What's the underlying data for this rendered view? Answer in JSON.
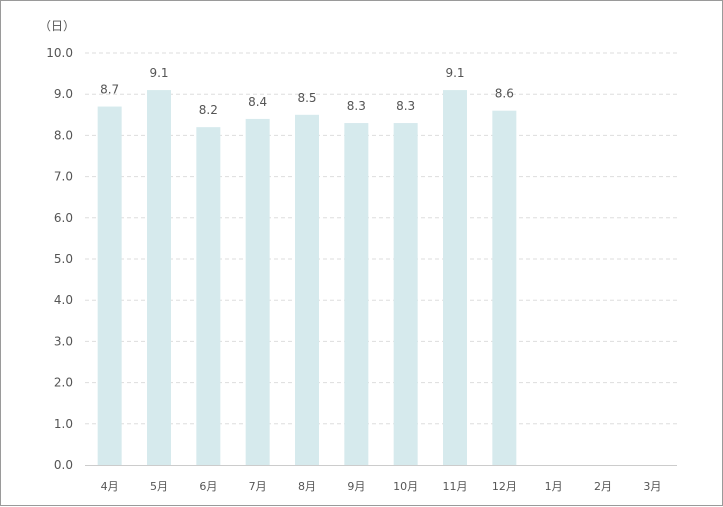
{
  "chart_data": {
    "type": "bar",
    "ylabel": "（日）",
    "ylim": [
      0,
      10
    ],
    "ytick_step": 1,
    "y_tick_labels": [
      "0.0",
      "1.0",
      "2.0",
      "3.0",
      "4.0",
      "5.0",
      "6.0",
      "7.0",
      "8.0",
      "9.0",
      "10.0"
    ],
    "categories": [
      "4月",
      "5月",
      "6月",
      "7月",
      "8月",
      "9月",
      "10月",
      "11月",
      "12月",
      "1月",
      "2月",
      "3月"
    ],
    "values": [
      8.7,
      9.1,
      8.2,
      8.4,
      8.5,
      8.3,
      8.3,
      9.1,
      8.6,
      null,
      null,
      null
    ],
    "data_labels": [
      "8.7",
      "9.1",
      "8.2",
      "8.4",
      "8.5",
      "8.3",
      "8.3",
      "9.1",
      "8.6",
      "",
      "",
      ""
    ],
    "grid": true,
    "grid_style": "dashed",
    "bar_color": "#d6eaed",
    "grid_color": "#dddddd",
    "axis_color": "#cccccc"
  }
}
